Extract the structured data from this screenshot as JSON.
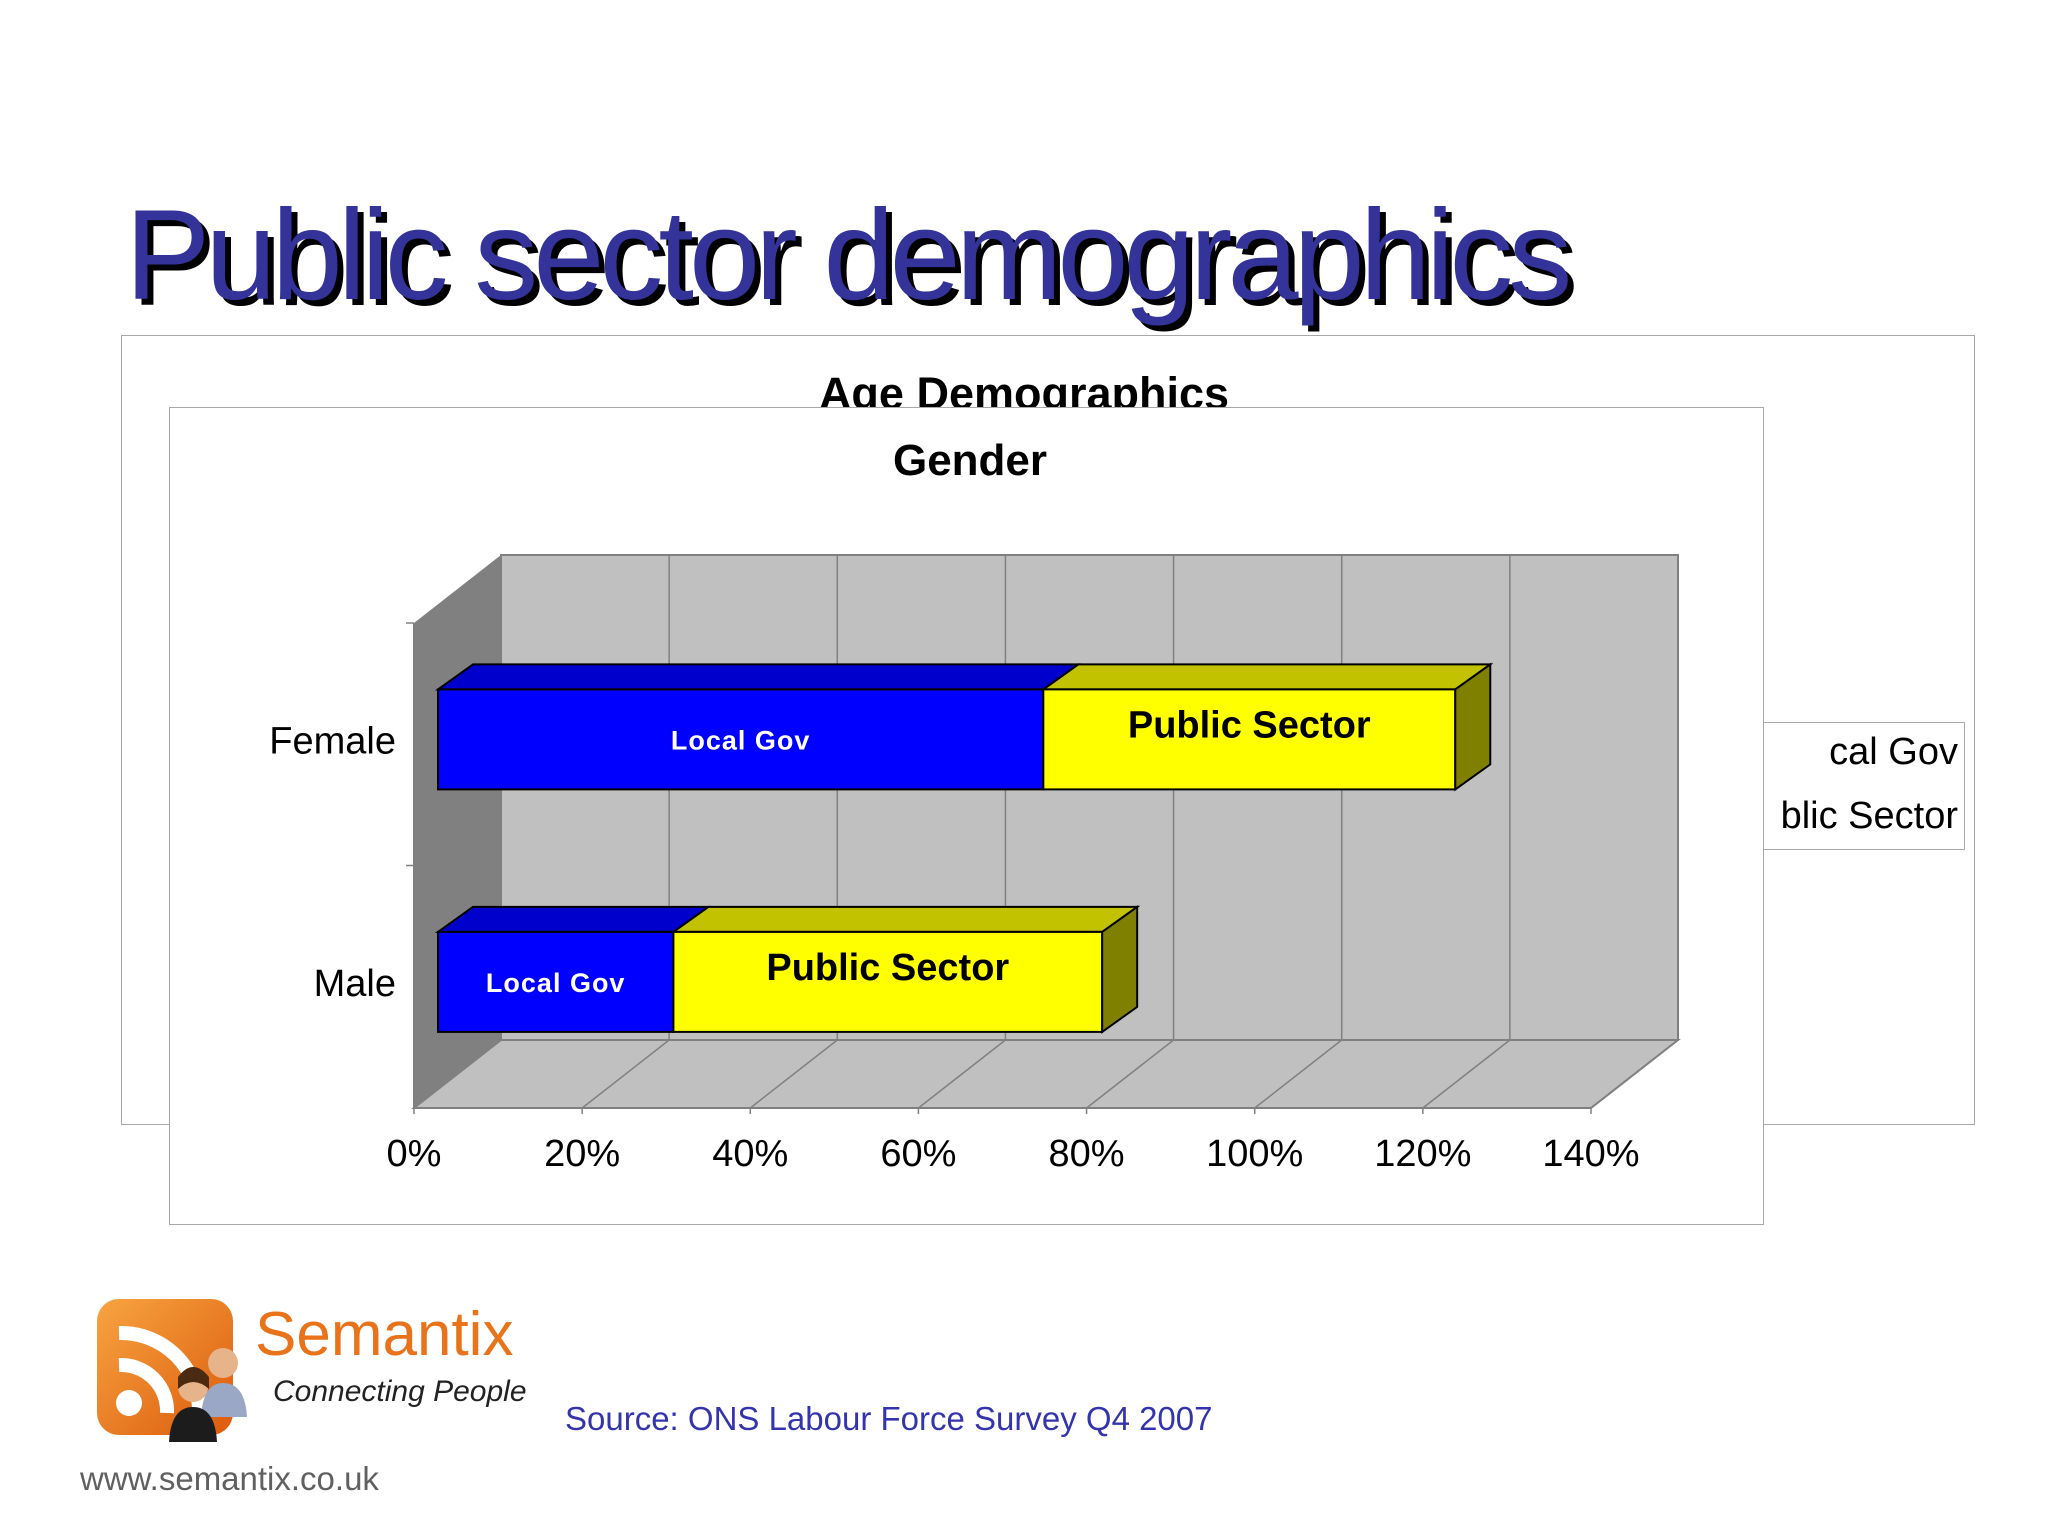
{
  "slide": {
    "title": "Public sector demographics",
    "source": "Source: ONS Labour Force Survey Q4 2007",
    "website": "www.semantix.co.uk"
  },
  "logo": {
    "name": "Semantix",
    "tagline": "Connecting People",
    "icon": "rss-people-icon",
    "color": "#e8731a"
  },
  "back_chart": {
    "title": "Age Demographics",
    "legend": [
      "cal Gov",
      "blic Sector"
    ]
  },
  "chart_data": {
    "type": "bar",
    "orientation": "horizontal",
    "stacked": true,
    "style": "3d",
    "title": "Gender",
    "categories": [
      "Female",
      "Male"
    ],
    "series": [
      {
        "label": "Local Gov",
        "values": [
          72,
          28
        ],
        "color": "#0000ff"
      },
      {
        "label": "Public Sector",
        "values": [
          49,
          51
        ],
        "color": "#ffff00"
      }
    ],
    "xlim": [
      0,
      140
    ],
    "xticks": [
      "0%",
      "20%",
      "40%",
      "60%",
      "80%",
      "100%",
      "120%",
      "140%"
    ],
    "grid": true
  }
}
